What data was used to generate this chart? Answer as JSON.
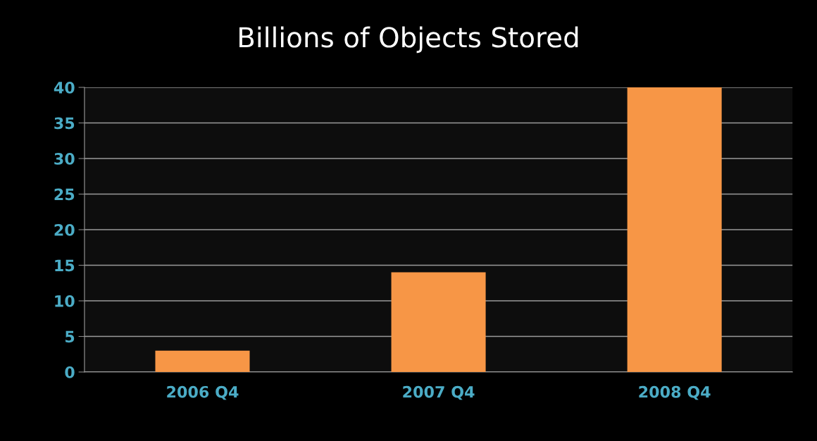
{
  "chart_data": {
    "type": "bar",
    "title": "Billions of Objects Stored",
    "categories": [
      "2006 Q4",
      "2007 Q4",
      "2008 Q4"
    ],
    "values": [
      3,
      14,
      40
    ],
    "color": "#f79646",
    "ylim": [
      0,
      40
    ],
    "yticks": [
      0,
      5,
      10,
      15,
      20,
      25,
      30,
      35,
      40
    ],
    "grid": "y",
    "legend": false
  }
}
